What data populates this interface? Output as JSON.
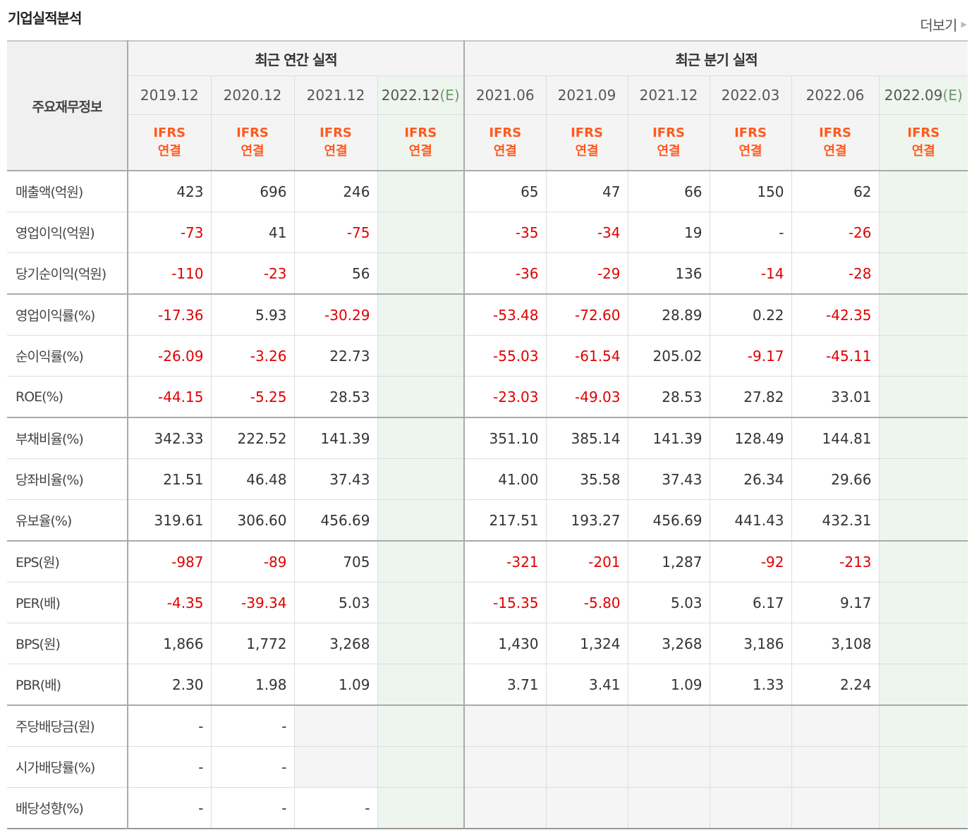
{
  "title": "기업실적분석",
  "more_label": "더보기",
  "header": {
    "label": "주요재무정보",
    "annual_title": "최근 연간 실적",
    "quarter_title": "최근 분기 실적",
    "periods": [
      "2019.12",
      "2020.12",
      "2021.12",
      "2022.12",
      "2021.06",
      "2021.09",
      "2021.12",
      "2022.03",
      "2022.06",
      "2022.09"
    ],
    "est_mark": "(E)",
    "ifrs_line1": "IFRS",
    "ifrs_line2": "연결"
  },
  "rows": [
    {
      "label": "매출액(억원)",
      "values": [
        "423",
        "696",
        "246",
        "",
        "65",
        "47",
        "66",
        "150",
        "62",
        ""
      ]
    },
    {
      "label": "영업이익(억원)",
      "values": [
        "-73",
        "41",
        "-75",
        "",
        "-35",
        "-34",
        "19",
        "-",
        "-26",
        ""
      ]
    },
    {
      "label": "당기순이익(억원)",
      "values": [
        "-110",
        "-23",
        "56",
        "",
        "-36",
        "-29",
        "136",
        "-14",
        "-28",
        ""
      ]
    },
    {
      "label": "영업이익률(%)",
      "values": [
        "-17.36",
        "5.93",
        "-30.29",
        "",
        "-53.48",
        "-72.60",
        "28.89",
        "0.22",
        "-42.35",
        ""
      ]
    },
    {
      "label": "순이익률(%)",
      "values": [
        "-26.09",
        "-3.26",
        "22.73",
        "",
        "-55.03",
        "-61.54",
        "205.02",
        "-9.17",
        "-45.11",
        ""
      ]
    },
    {
      "label": "ROE(%)",
      "values": [
        "-44.15",
        "-5.25",
        "28.53",
        "",
        "-23.03",
        "-49.03",
        "28.53",
        "27.82",
        "33.01",
        ""
      ]
    },
    {
      "label": "부채비율(%)",
      "values": [
        "342.33",
        "222.52",
        "141.39",
        "",
        "351.10",
        "385.14",
        "141.39",
        "128.49",
        "144.81",
        ""
      ]
    },
    {
      "label": "당좌비율(%)",
      "values": [
        "21.51",
        "46.48",
        "37.43",
        "",
        "41.00",
        "35.58",
        "37.43",
        "26.34",
        "29.66",
        ""
      ]
    },
    {
      "label": "유보율(%)",
      "values": [
        "319.61",
        "306.60",
        "456.69",
        "",
        "217.51",
        "193.27",
        "456.69",
        "441.43",
        "432.31",
        ""
      ]
    },
    {
      "label": "EPS(원)",
      "values": [
        "-987",
        "-89",
        "705",
        "",
        "-321",
        "-201",
        "1,287",
        "-92",
        "-213",
        ""
      ]
    },
    {
      "label": "PER(배)",
      "values": [
        "-4.35",
        "-39.34",
        "5.03",
        "",
        "-15.35",
        "-5.80",
        "5.03",
        "6.17",
        "9.17",
        ""
      ]
    },
    {
      "label": "BPS(원)",
      "values": [
        "1,866",
        "1,772",
        "3,268",
        "",
        "1,430",
        "1,324",
        "3,268",
        "3,186",
        "3,108",
        ""
      ]
    },
    {
      "label": "PBR(배)",
      "values": [
        "2.30",
        "1.98",
        "1.09",
        "",
        "3.71",
        "3.41",
        "1.09",
        "1.33",
        "2.24",
        ""
      ]
    },
    {
      "label": "주당배당금(원)",
      "values": [
        "-",
        "-",
        "",
        "",
        "",
        "",
        "",
        "",
        "",
        ""
      ]
    },
    {
      "label": "시가배당률(%)",
      "values": [
        "-",
        "-",
        "",
        "",
        "",
        "",
        "",
        "",
        "",
        ""
      ]
    },
    {
      "label": "배당성향(%)",
      "values": [
        "-",
        "-",
        "-",
        "",
        "",
        "",
        "",
        "",
        "",
        ""
      ]
    }
  ],
  "colors": {
    "negative": "#e00000",
    "ifrs": "#ff5a1e",
    "estimate": "#6b9a6b"
  }
}
